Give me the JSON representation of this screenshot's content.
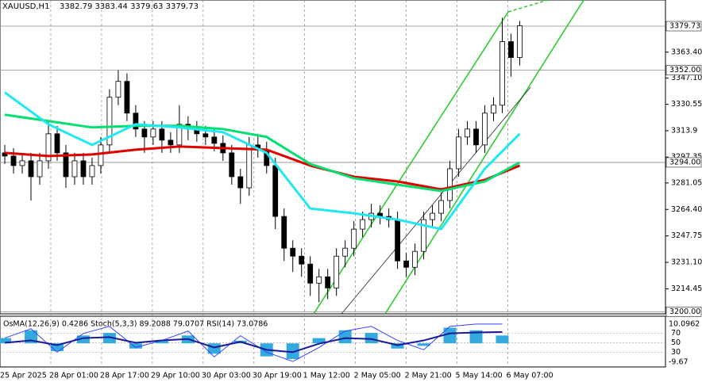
{
  "chart_data": {
    "type": "candlestick",
    "title": "XAUUSD,H1",
    "quote": "3382.79 3383.44 3379.63 3379.73",
    "indicator_title": "OsMA(12,26,9) 0.4286 Stoch(5,3,3) 89.2088 79.0707 RSI(14) 73.0786",
    "open": [
      3300,
      3298,
      3292,
      3295,
      3285,
      3295,
      3312,
      3300,
      3285,
      3295,
      3285,
      3292,
      3305,
      3335,
      3345,
      3325,
      3315,
      3310,
      3315,
      3308,
      3305,
      3318,
      3315,
      3312,
      3310,
      3306,
      3300,
      3285,
      3278,
      3305,
      3302,
      3292,
      3260,
      3240,
      3235,
      3230,
      3218,
      3222,
      3215,
      3235,
      3240,
      3252,
      3258,
      3262,
      3260,
      3258,
      3232,
      3228,
      3238,
      3258,
      3262,
      3270,
      3290,
      3310,
      3315,
      3305,
      3325,
      3330,
      3370,
      3360
    ],
    "high": [
      3305,
      3303,
      3300,
      3300,
      3300,
      3320,
      3317,
      3305,
      3300,
      3300,
      3297,
      3310,
      3340,
      3352,
      3350,
      3330,
      3320,
      3320,
      3320,
      3313,
      3330,
      3323,
      3320,
      3317,
      3315,
      3311,
      3305,
      3290,
      3310,
      3312,
      3307,
      3297,
      3265,
      3245,
      3240,
      3235,
      3227,
      3227,
      3240,
      3245,
      3257,
      3263,
      3268,
      3267,
      3265,
      3263,
      3237,
      3243,
      3263,
      3267,
      3275,
      3295,
      3315,
      3320,
      3320,
      3330,
      3335,
      3385,
      3375,
      3383
    ],
    "low": [
      3293,
      3287,
      3287,
      3270,
      3280,
      3290,
      3295,
      3278,
      3280,
      3280,
      3280,
      3287,
      3300,
      3330,
      3320,
      3310,
      3300,
      3305,
      3300,
      3300,
      3300,
      3308,
      3307,
      3305,
      3301,
      3295,
      3280,
      3268,
      3273,
      3297,
      3287,
      3252,
      3232,
      3225,
      3222,
      3210,
      3206,
      3208,
      3210,
      3228,
      3235,
      3247,
      3253,
      3255,
      3253,
      3227,
      3222,
      3223,
      3233,
      3253,
      3257,
      3265,
      3285,
      3305,
      3300,
      3300,
      3320,
      3325,
      3348,
      3355
    ],
    "close": [
      3298,
      3292,
      3295,
      3285,
      3295,
      3312,
      3300,
      3285,
      3295,
      3285,
      3292,
      3305,
      3335,
      3345,
      3325,
      3315,
      3310,
      3315,
      3308,
      3305,
      3318,
      3315,
      3312,
      3310,
      3306,
      3300,
      3285,
      3278,
      3305,
      3302,
      3292,
      3260,
      3240,
      3235,
      3230,
      3218,
      3222,
      3215,
      3235,
      3240,
      3252,
      3258,
      3262,
      3260,
      3258,
      3232,
      3228,
      3238,
      3258,
      3262,
      3270,
      3290,
      3310,
      3315,
      3305,
      3325,
      3330,
      3370,
      3360,
      3380
    ],
    "ma_x": [
      0,
      5,
      10,
      15,
      20,
      25,
      30,
      35,
      40,
      45,
      50,
      55,
      59
    ],
    "series": [
      {
        "color": "#e00000",
        "values": [
          3300,
          3298,
          3299,
          3302,
          3304,
          3303,
          3302,
          3292,
          3285,
          3282,
          3277,
          3283,
          3292
        ]
      },
      {
        "color": "#00e070",
        "values": [
          3324,
          3320,
          3316,
          3317,
          3317,
          3315,
          3310,
          3293,
          3284,
          3280,
          3276,
          3282,
          3294
        ]
      },
      {
        "color": "#20e8f0",
        "values": [
          3338,
          3318,
          3305,
          3318,
          3316,
          3313,
          3300,
          3265,
          3262,
          3258,
          3252,
          3290,
          3312
        ]
      }
    ],
    "ylim": [
      3198.7,
      3396.2
    ],
    "yticks": [
      {
        "value": 3363.4,
        "label": "3363.40"
      },
      {
        "value": 3347.1,
        "label": "3347.10"
      },
      3330.55,
      3313.9,
      3297.35,
      {
        "value": 3281.05,
        "label": "3281.05"
      },
      {
        "value": 3264.4,
        "label": "3264.40"
      },
      3247.75,
      {
        "value": 3231.1,
        "label": "3231.10"
      },
      3214.45
    ],
    "price_lines": [
      {
        "value": 3379.73,
        "label": "3379.73"
      },
      {
        "value": 3352,
        "label": "3352.00"
      },
      {
        "value": 3294,
        "label": "3294.00"
      },
      {
        "value": 3200,
        "label": "3200.00"
      }
    ],
    "xlim": [
      -0.55,
      75.7
    ],
    "xticks": [
      {
        "value": -0.55,
        "label": "25 Apr 2025"
      },
      {
        "value": 5.27,
        "label": "28 Apr 01:00"
      },
      {
        "value": 11.09,
        "label": "28 Apr 17:00"
      },
      {
        "value": 16.91,
        "label": "29 Apr 10:00"
      },
      {
        "value": 22.73,
        "label": "30 Apr 03:00"
      },
      {
        "value": 28.55,
        "label": "30 Apr 19:00"
      },
      {
        "value": 34.36,
        "label": "1 May 12:00"
      },
      {
        "value": 40.18,
        "label": "2 May 05:00"
      },
      {
        "value": 46,
        "label": "2 May 21:00"
      },
      {
        "value": 51.82,
        "label": "5 May 14:00"
      },
      {
        "value": 57.64,
        "label": "6 May 07:00"
      }
    ],
    "osc_x": [
      0,
      3,
      6,
      9,
      12,
      15,
      18,
      21,
      24,
      27,
      30,
      33,
      36,
      39,
      42,
      45,
      48,
      51,
      54,
      57
    ],
    "stoch": [
      60,
      80,
      30,
      70,
      85,
      40,
      55,
      75,
      20,
      65,
      30,
      10,
      40,
      75,
      85,
      55,
      35,
      85,
      90,
      90
    ],
    "rsi": [
      50,
      55,
      45,
      60,
      62,
      50,
      55,
      58,
      40,
      52,
      35,
      30,
      48,
      60,
      58,
      45,
      55,
      70,
      72,
      73
    ],
    "osma": [
      2,
      5,
      -3,
      3,
      4,
      -2,
      1,
      3,
      -4,
      1,
      -5,
      -6,
      2,
      5,
      4,
      -2,
      -1,
      6,
      5,
      3
    ],
    "osma_lim": [
      -9.67,
      10.0962
    ],
    "osma_labels": [
      "10.0962",
      "-9.67"
    ],
    "osc_ylim": [
      -5,
      105
    ],
    "osc_yticks": [
      70,
      50,
      30
    ]
  }
}
